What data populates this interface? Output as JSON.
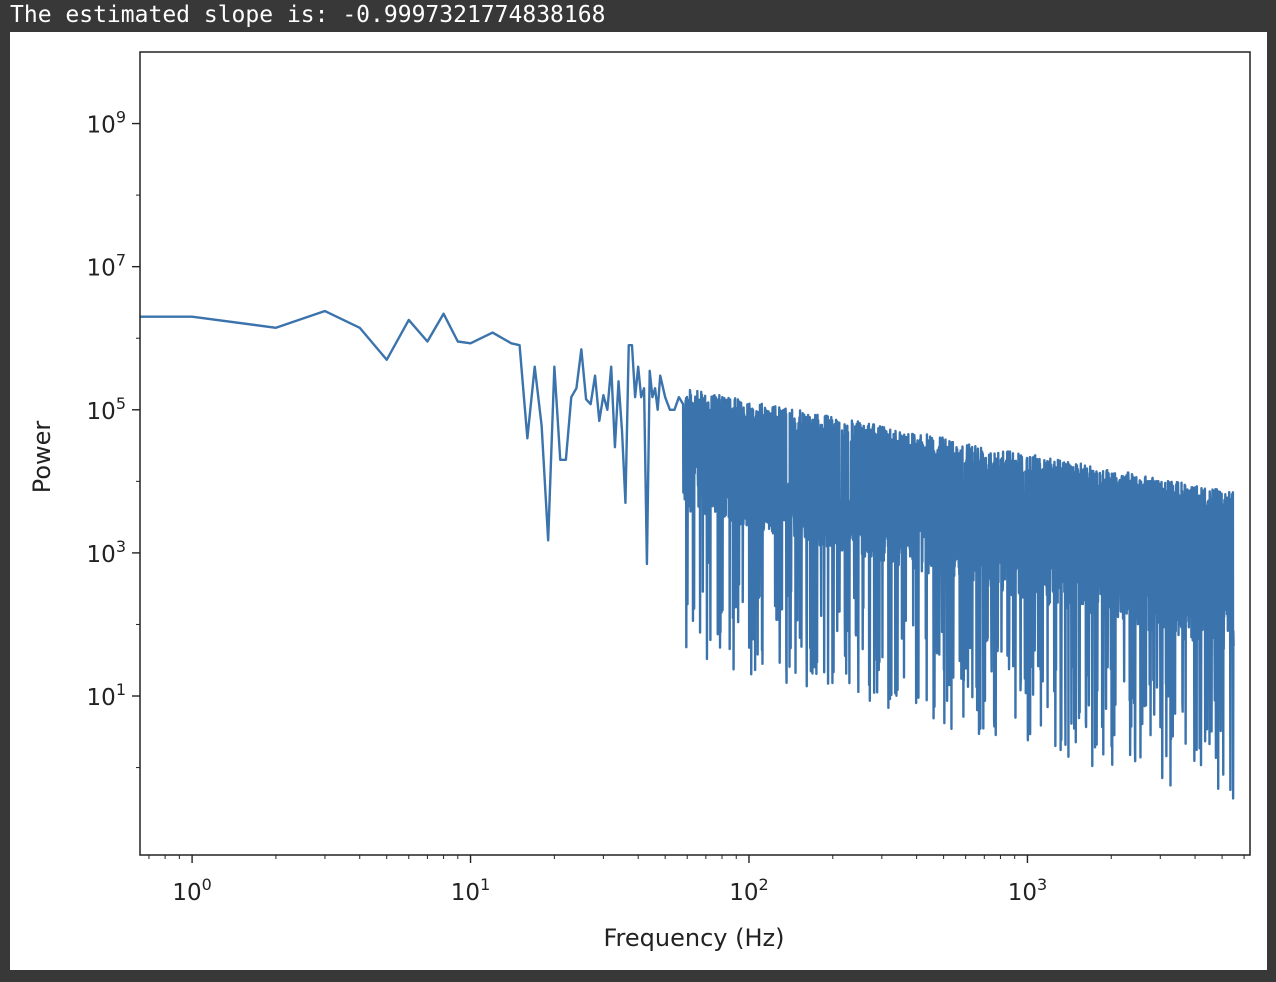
{
  "output": {
    "text": "The estimated slope is: -0.9997321774838168"
  },
  "chart_data": {
    "type": "line",
    "title": "",
    "xlabel": "Frequency (Hz)",
    "ylabel": "Power",
    "x_scale": "log",
    "y_scale": "log",
    "xlim": [
      0.65,
      6300
    ],
    "ylim": [
      0.06,
      10000000000.0
    ],
    "grid": false,
    "line_color": "#3b73ad",
    "x_ticks": [
      {
        "value": 1,
        "base": "10",
        "exp": "0"
      },
      {
        "value": 10,
        "base": "10",
        "exp": "1"
      },
      {
        "value": 100,
        "base": "10",
        "exp": "2"
      },
      {
        "value": 1000,
        "base": "10",
        "exp": "3"
      }
    ],
    "y_ticks": [
      {
        "value": 10,
        "base": "10",
        "exp": "1"
      },
      {
        "value": 1000,
        "base": "10",
        "exp": "3"
      },
      {
        "value": 100000,
        "base": "10",
        "exp": "5"
      },
      {
        "value": 10000000,
        "base": "10",
        "exp": "7"
      },
      {
        "value": 1000000000,
        "base": "10",
        "exp": "9"
      }
    ],
    "series": [
      {
        "x": [
          0.65,
          1,
          2,
          3,
          4,
          5,
          6,
          7,
          8,
          9,
          10,
          12,
          14,
          15,
          16,
          17,
          18,
          19,
          20,
          21,
          22,
          23,
          24,
          25,
          26,
          27,
          28,
          29,
          30,
          31,
          32,
          33,
          34,
          35,
          36,
          37,
          38,
          39,
          40,
          41,
          42,
          43,
          44,
          45,
          46,
          47,
          48,
          50,
          52,
          54,
          56,
          58
        ],
        "y": [
          2000000,
          2000000,
          1400000,
          2400000,
          1400000,
          500000,
          1800000,
          900000,
          2200000,
          900000,
          850000,
          1200000,
          850000,
          800000,
          40000,
          400000,
          60000,
          1500,
          400000,
          20000,
          20000,
          150000,
          200000,
          700000,
          140000,
          120000,
          300000,
          70000,
          160000,
          100000,
          400000,
          30000,
          250000,
          50000,
          5000,
          800000,
          800000,
          150000,
          400000,
          150000,
          200000,
          700,
          350000,
          150000,
          200000,
          100000,
          300000,
          150000,
          100000,
          100000,
          150000,
          120000
        ]
      }
    ],
    "noise_region": {
      "x_start": 58,
      "x_end": 5500,
      "upper_power_at_start": 200000,
      "upper_power_at_end": 7000,
      "lower_power_at_start": 10000,
      "lower_power_at_end": 100,
      "min_power": 0.35,
      "slope": -0.9997321774838168
    }
  }
}
